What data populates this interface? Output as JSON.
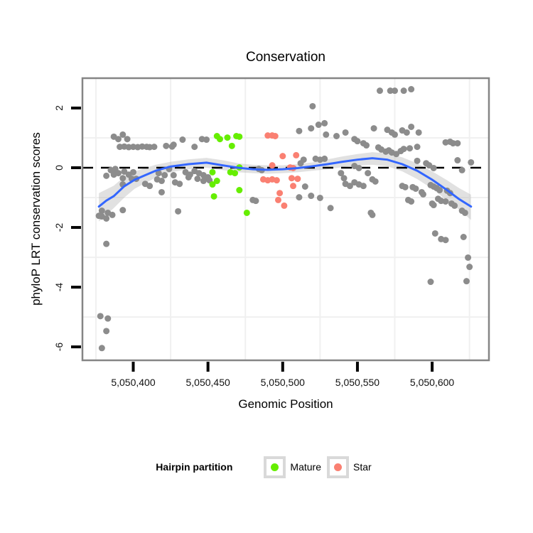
{
  "title": "Conservation",
  "x_axis": {
    "label": "Genomic Position",
    "ticks": [
      {
        "value": 5050400,
        "label": "5,050,400"
      },
      {
        "value": 5050450,
        "label": "5,050,450"
      },
      {
        "value": 5050500,
        "label": "5,050,500"
      },
      {
        "value": 5050550,
        "label": "5,050,550"
      },
      {
        "value": 5050600,
        "label": "5,050,600"
      }
    ],
    "minor_gridlines": [
      5050375,
      5050425,
      5050475,
      5050525,
      5050575,
      5050625
    ]
  },
  "y_axis": {
    "label": "phyloP LRT conservation scores",
    "ticks": [
      {
        "value": 2,
        "label": "2"
      },
      {
        "value": 0,
        "label": "0"
      },
      {
        "value": -2,
        "label": "-2"
      },
      {
        "value": -4,
        "label": "-4"
      },
      {
        "value": -6,
        "label": "-6"
      }
    ],
    "minor_gridlines": [
      1,
      -1,
      -3,
      -5
    ]
  },
  "legend": {
    "title": "Hairpin partition",
    "items": [
      {
        "label": "Mature",
        "color": "#66EE00"
      },
      {
        "label": "Star",
        "color": "#FA8072"
      }
    ]
  },
  "colors": {
    "background_points": "#8C8C8C",
    "mature_points": "#66EE00",
    "star_points": "#FA8072",
    "smooth_line": "#3366FF",
    "confidence_band": "#B3B3B3",
    "reference_line": "#000000",
    "panel_border": "#858585",
    "minor_gridline": "#F0F0F0",
    "tick_mark": "#000000"
  },
  "chart_data": {
    "type": "scatter",
    "title": "Conservation",
    "xlabel": "Genomic Position",
    "ylabel": "phyloP LRT conservation scores",
    "xlim": [
      5050366,
      5050638
    ],
    "ylim": [
      -6.45,
      3.0
    ],
    "grid": "minor-only",
    "legend_position": "bottom",
    "reference_line_y": 0,
    "series": [
      {
        "name": "unpartitioned",
        "color": "#8C8C8C",
        "points": [
          [
            5050387,
            1.04
          ],
          [
            5050390,
            0.96
          ],
          [
            5050393,
            1.11
          ],
          [
            5050396,
            0.96
          ],
          [
            5050391,
            0.7
          ],
          [
            5050394,
            0.71
          ],
          [
            5050397,
            0.69
          ],
          [
            5050400,
            0.7
          ],
          [
            5050403,
            0.69
          ],
          [
            5050406,
            0.71
          ],
          [
            5050409,
            0.7
          ],
          [
            5050411,
            0.69
          ],
          [
            5050414,
            0.7
          ],
          [
            5050422,
            0.73
          ],
          [
            5050426,
            0.71
          ],
          [
            5050427,
            0.77
          ],
          [
            5050433,
            0.94
          ],
          [
            5050441,
            0.7
          ],
          [
            5050446,
            0.96
          ],
          [
            5050449,
            0.94
          ],
          [
            5050385,
            -0.08
          ],
          [
            5050388,
            -0.04
          ],
          [
            5050387,
            -0.23
          ],
          [
            5050390,
            -0.18
          ],
          [
            5050394,
            -0.13
          ],
          [
            5050397,
            -0.23
          ],
          [
            5050400,
            -0.15
          ],
          [
            5050393,
            -0.35
          ],
          [
            5050399,
            -0.37
          ],
          [
            5050402,
            -0.37
          ],
          [
            5050382,
            -0.27
          ],
          [
            5050393,
            -0.56
          ],
          [
            5050408,
            -0.54
          ],
          [
            5050411,
            -0.61
          ],
          [
            5050416,
            -0.39
          ],
          [
            5050419,
            -0.44
          ],
          [
            5050417,
            -0.18
          ],
          [
            5050421,
            -0.25
          ],
          [
            5050424,
            -0.04
          ],
          [
            5050427,
            -0.25
          ],
          [
            5050419,
            -0.82
          ],
          [
            5050428,
            -0.49
          ],
          [
            5050431,
            -0.54
          ],
          [
            5050430,
            -1.46
          ],
          [
            5050435,
            -0.15
          ],
          [
            5050438,
            -0.23
          ],
          [
            5050437,
            -0.32
          ],
          [
            5050441,
            -0.11
          ],
          [
            5050444,
            -0.18
          ],
          [
            5050447,
            -0.25
          ],
          [
            5050450,
            -0.32
          ],
          [
            5050451,
            -0.42
          ],
          [
            5050447,
            -0.44
          ],
          [
            5050443,
            -0.37
          ],
          [
            5050377,
            -1.61
          ],
          [
            5050379,
            -1.44
          ],
          [
            5050383,
            -1.51
          ],
          [
            5050379,
            -1.63
          ],
          [
            5050382,
            -1.7
          ],
          [
            5050386,
            -1.58
          ],
          [
            5050393,
            -1.42
          ],
          [
            5050382,
            -2.55
          ],
          [
            5050378,
            -4.97
          ],
          [
            5050383,
            -5.05
          ],
          [
            5050382,
            -5.47
          ],
          [
            5050379,
            -6.04
          ],
          [
            5050484,
            -0.04
          ],
          [
            5050486,
            -0.08
          ],
          [
            5050480,
            -1.08
          ],
          [
            5050482,
            -1.11
          ],
          [
            5050520,
            2.06
          ],
          [
            5050511,
            1.23
          ],
          [
            5050519,
            1.32
          ],
          [
            5050524,
            1.44
          ],
          [
            5050528,
            1.49
          ],
          [
            5050529,
            1.11
          ],
          [
            5050536,
            1.06
          ],
          [
            5050542,
            1.18
          ],
          [
            5050514,
            0.27
          ],
          [
            5050522,
            0.3
          ],
          [
            5050525,
            0.27
          ],
          [
            5050528,
            0.3
          ],
          [
            5050512,
            0.15
          ],
          [
            5050515,
            -0.63
          ],
          [
            5050519,
            -0.94
          ],
          [
            5050511,
            -0.99
          ],
          [
            5050525,
            -1.01
          ],
          [
            5050532,
            -1.35
          ],
          [
            5050539,
            -0.18
          ],
          [
            5050541,
            -0.35
          ],
          [
            5050542,
            -0.54
          ],
          [
            5050545,
            -0.61
          ],
          [
            5050565,
            2.58
          ],
          [
            5050572,
            2.58
          ],
          [
            5050575,
            2.58
          ],
          [
            5050581,
            2.58
          ],
          [
            5050586,
            2.63
          ],
          [
            5050561,
            1.32
          ],
          [
            5050570,
            1.27
          ],
          [
            5050573,
            1.18
          ],
          [
            5050575,
            1.11
          ],
          [
            5050580,
            1.25
          ],
          [
            5050583,
            1.18
          ],
          [
            5050586,
            1.37
          ],
          [
            5050591,
            1.18
          ],
          [
            5050548,
            0.96
          ],
          [
            5050550,
            0.89
          ],
          [
            5050554,
            0.82
          ],
          [
            5050556,
            0.75
          ],
          [
            5050609,
            0.85
          ],
          [
            5050612,
            0.87
          ],
          [
            5050614,
            0.82
          ],
          [
            5050617,
            0.82
          ],
          [
            5050564,
            0.68
          ],
          [
            5050566,
            0.61
          ],
          [
            5050569,
            0.54
          ],
          [
            5050571,
            0.58
          ],
          [
            5050573,
            0.51
          ],
          [
            5050576,
            0.46
          ],
          [
            5050579,
            0.56
          ],
          [
            5050581,
            0.63
          ],
          [
            5050585,
            0.65
          ],
          [
            5050590,
            0.7
          ],
          [
            5050590,
            0.23
          ],
          [
            5050596,
            0.15
          ],
          [
            5050598,
            0.08
          ],
          [
            5050601,
            -0.01
          ],
          [
            5050617,
            0.25
          ],
          [
            5050626,
            0.18
          ],
          [
            5050620,
            -0.08
          ],
          [
            5050548,
            0.06
          ],
          [
            5050551,
            -0.01
          ],
          [
            5050557,
            -0.18
          ],
          [
            5050548,
            -0.49
          ],
          [
            5050551,
            -0.56
          ],
          [
            5050554,
            -0.61
          ],
          [
            5050560,
            -0.39
          ],
          [
            5050562,
            -0.46
          ],
          [
            5050580,
            -0.61
          ],
          [
            5050582,
            -0.65
          ],
          [
            5050587,
            -0.65
          ],
          [
            5050589,
            -0.7
          ],
          [
            5050593,
            -0.82
          ],
          [
            5050594,
            -0.89
          ],
          [
            5050599,
            -0.58
          ],
          [
            5050601,
            -0.63
          ],
          [
            5050603,
            -0.68
          ],
          [
            5050605,
            -0.75
          ],
          [
            5050610,
            -0.77
          ],
          [
            5050612,
            -0.85
          ],
          [
            5050600,
            -1.2
          ],
          [
            5050601,
            -1.25
          ],
          [
            5050604,
            -1.04
          ],
          [
            5050606,
            -1.11
          ],
          [
            5050609,
            -1.13
          ],
          [
            5050613,
            -1.2
          ],
          [
            5050615,
            -1.27
          ],
          [
            5050620,
            -1.44
          ],
          [
            5050622,
            -1.51
          ],
          [
            5050559,
            -1.51
          ],
          [
            5050560,
            -1.58
          ],
          [
            5050584,
            -1.08
          ],
          [
            5050586,
            -1.13
          ],
          [
            5050602,
            -2.2
          ],
          [
            5050606,
            -2.39
          ],
          [
            5050609,
            -2.42
          ],
          [
            5050621,
            -2.32
          ],
          [
            5050624,
            -3.01
          ],
          [
            5050625,
            -3.32
          ],
          [
            5050599,
            -3.82
          ],
          [
            5050623,
            -3.8
          ]
        ]
      },
      {
        "name": "Mature",
        "color": "#66EE00",
        "points": [
          [
            5050456,
            1.06
          ],
          [
            5050458,
            0.96
          ],
          [
            5050463,
            1.01
          ],
          [
            5050469,
            1.06
          ],
          [
            5050471,
            1.04
          ],
          [
            5050466,
            0.73
          ],
          [
            5050471,
            0.01
          ],
          [
            5050453,
            -0.15
          ],
          [
            5050465,
            -0.15
          ],
          [
            5050468,
            -0.18
          ],
          [
            5050456,
            -0.44
          ],
          [
            5050453,
            -0.56
          ],
          [
            5050471,
            -0.75
          ],
          [
            5050454,
            -0.96
          ],
          [
            5050476,
            -1.51
          ]
        ]
      },
      {
        "name": "Star",
        "color": "#FA8072",
        "points": [
          [
            5050490,
            1.08
          ],
          [
            5050493,
            1.08
          ],
          [
            5050495,
            1.06
          ],
          [
            5050500,
            0.39
          ],
          [
            5050509,
            0.42
          ],
          [
            5050493,
            0.08
          ],
          [
            5050505,
            0.01
          ],
          [
            5050507,
            -0.01
          ],
          [
            5050487,
            -0.39
          ],
          [
            5050490,
            -0.42
          ],
          [
            5050493,
            -0.39
          ],
          [
            5050496,
            -0.42
          ],
          [
            5050506,
            -0.35
          ],
          [
            5050510,
            -0.37
          ],
          [
            5050507,
            -0.61
          ],
          [
            5050498,
            -0.85
          ],
          [
            5050497,
            -1.08
          ],
          [
            5050501,
            -1.27
          ]
        ]
      }
    ],
    "smooth": {
      "color": "#3366FF",
      "points": [
        [
          5050377,
          -1.3
        ],
        [
          5050382,
          -1.1
        ],
        [
          5050387,
          -0.95
        ],
        [
          5050394,
          -0.62
        ],
        [
          5050401,
          -0.4
        ],
        [
          5050408,
          -0.25
        ],
        [
          5050415,
          -0.1
        ],
        [
          5050425,
          0.04
        ],
        [
          5050437,
          0.12
        ],
        [
          5050449,
          0.17
        ],
        [
          5050460,
          0.08
        ],
        [
          5050470,
          0.0
        ],
        [
          5050480,
          -0.05
        ],
        [
          5050490,
          -0.07
        ],
        [
          5050500,
          -0.05
        ],
        [
          5050510,
          -0.01
        ],
        [
          5050520,
          0.05
        ],
        [
          5050530,
          0.12
        ],
        [
          5050540,
          0.2
        ],
        [
          5050550,
          0.27
        ],
        [
          5050560,
          0.32
        ],
        [
          5050570,
          0.27
        ],
        [
          5050580,
          0.12
        ],
        [
          5050590,
          -0.1
        ],
        [
          5050600,
          -0.4
        ],
        [
          5050610,
          -0.75
        ],
        [
          5050618,
          -1.05
        ],
        [
          5050626,
          -1.3
        ]
      ]
    },
    "confidence_band": {
      "color": "#B3B3B3",
      "alpha": 0.4,
      "points": [
        [
          5050377,
          -1.8,
          -0.85
        ],
        [
          5050387,
          -1.35,
          -0.6
        ],
        [
          5050394,
          -1.0,
          -0.3
        ],
        [
          5050401,
          -0.7,
          -0.12
        ],
        [
          5050415,
          -0.33,
          0.1
        ],
        [
          5050425,
          -0.15,
          0.2
        ],
        [
          5050437,
          -0.05,
          0.28
        ],
        [
          5050449,
          0.0,
          0.33
        ],
        [
          5050460,
          -0.08,
          0.25
        ],
        [
          5050470,
          -0.15,
          0.15
        ],
        [
          5050480,
          -0.18,
          0.1
        ],
        [
          5050490,
          -0.2,
          0.08
        ],
        [
          5050500,
          -0.18,
          0.08
        ],
        [
          5050510,
          -0.15,
          0.12
        ],
        [
          5050520,
          -0.1,
          0.18
        ],
        [
          5050530,
          -0.05,
          0.28
        ],
        [
          5050540,
          0.02,
          0.38
        ],
        [
          5050550,
          0.07,
          0.46
        ],
        [
          5050560,
          0.1,
          0.52
        ],
        [
          5050570,
          0.05,
          0.48
        ],
        [
          5050580,
          -0.12,
          0.35
        ],
        [
          5050590,
          -0.38,
          0.15
        ],
        [
          5050600,
          -0.7,
          -0.12
        ],
        [
          5050610,
          -1.1,
          -0.42
        ],
        [
          5050618,
          -1.4,
          -0.68
        ],
        [
          5050626,
          -1.75,
          -0.9
        ]
      ]
    }
  }
}
